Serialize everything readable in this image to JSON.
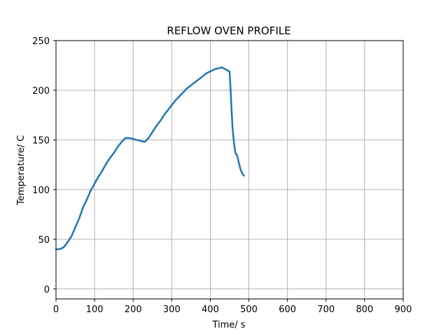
{
  "chart_data": {
    "type": "line",
    "title": "REFLOW OVEN PROFILE",
    "xlabel": "Time/ s",
    "ylabel": "Temperature/ C",
    "xlim": [
      0,
      900
    ],
    "ylim": [
      -10,
      250
    ],
    "xticks": [
      0,
      100,
      200,
      300,
      400,
      500,
      600,
      700,
      800,
      900
    ],
    "yticks": [
      0,
      50,
      100,
      150,
      200,
      250
    ],
    "grid": true,
    "line_color": "#1f77b4",
    "series": [
      {
        "x": [
          0,
          10,
          20,
          30,
          40,
          50,
          60,
          70,
          80,
          90,
          100,
          110,
          120,
          130,
          140,
          150,
          160,
          170,
          180,
          190,
          200,
          210,
          220,
          230,
          240,
          250,
          260,
          270,
          280,
          290,
          300,
          310,
          320,
          330,
          340,
          350,
          360,
          370,
          380,
          390,
          400,
          410,
          420,
          430,
          440,
          445,
          450,
          452,
          455,
          458,
          462,
          465,
          470,
          474,
          478,
          482,
          487
        ],
        "y": [
          40,
          40,
          42,
          47,
          53,
          62,
          71,
          82,
          90,
          99,
          106,
          113,
          119,
          126,
          132,
          137,
          143,
          148,
          152,
          152,
          151,
          150,
          149,
          148,
          152,
          158,
          164,
          169,
          175,
          180,
          185,
          190,
          194,
          198,
          202,
          205,
          208,
          211,
          214,
          217,
          219,
          221,
          222,
          223,
          221,
          220,
          219,
          205,
          180,
          160,
          145,
          137,
          134,
          127,
          121,
          117,
          114
        ]
      }
    ]
  }
}
